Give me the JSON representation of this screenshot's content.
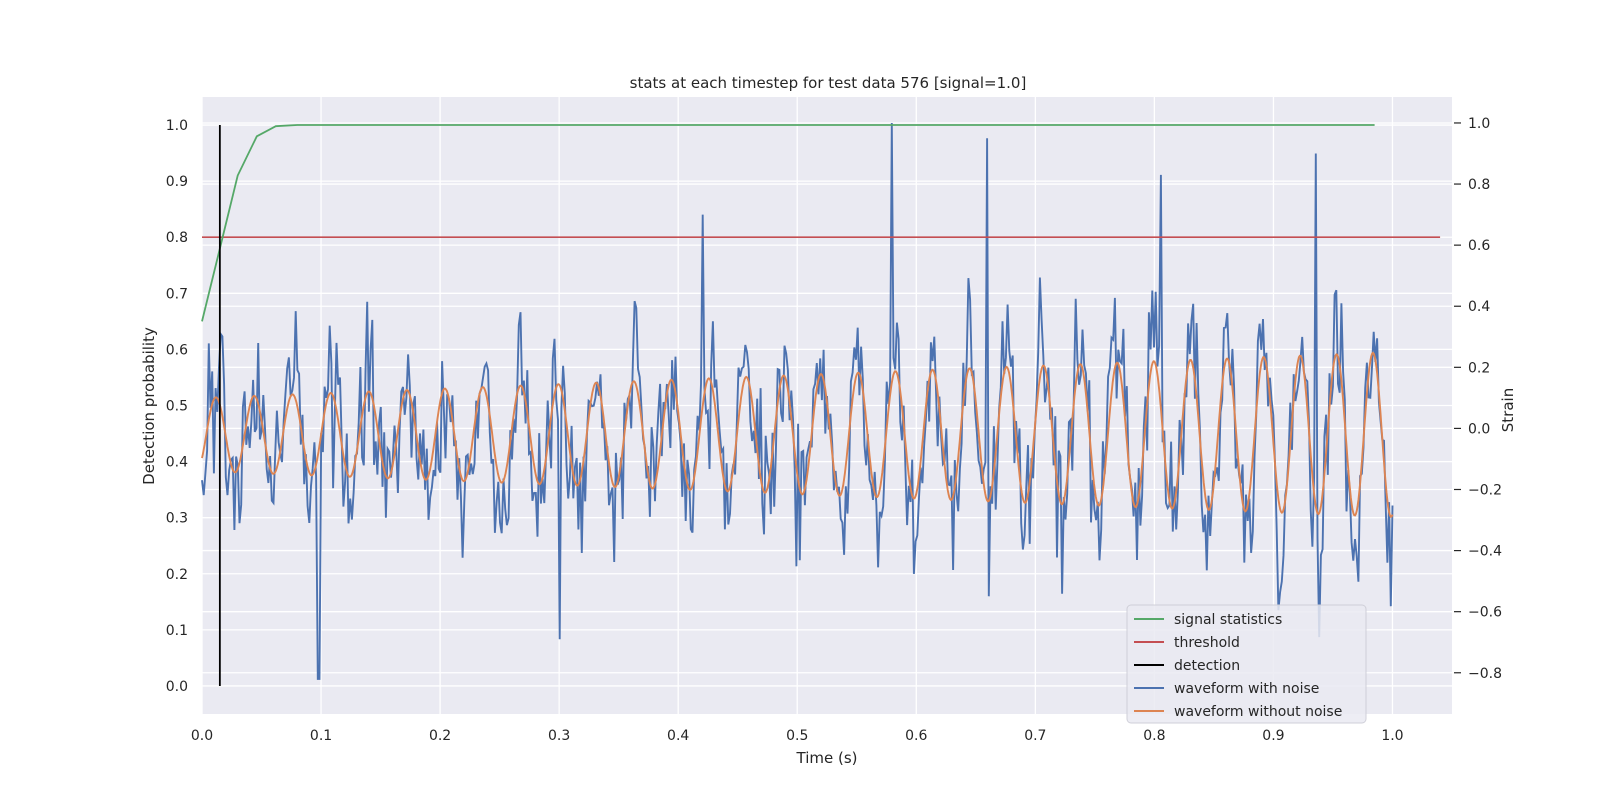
{
  "chart_data": {
    "type": "line",
    "title": "stats at each timestep for test data 576 [signal=1.0]",
    "xlabel": "Time (s)",
    "ylabel": "Detection probability",
    "y2label": "Strain",
    "xlim": [
      0.0,
      1.05
    ],
    "ylim": [
      -0.05,
      1.05
    ],
    "y2lim": [
      -0.935,
      1.085
    ],
    "xticks": [
      0.0,
      0.1,
      0.2,
      0.3,
      0.4,
      0.5,
      0.6,
      0.7,
      0.8,
      0.9,
      1.0
    ],
    "yticks": [
      0.0,
      0.1,
      0.2,
      0.3,
      0.4,
      0.5,
      0.6,
      0.7,
      0.8,
      0.9,
      1.0
    ],
    "y2ticks": [
      -0.8,
      -0.6,
      -0.4,
      -0.2,
      0.0,
      0.2,
      0.4,
      0.6,
      0.8,
      1.0
    ],
    "grid": true,
    "legend_position": "bottom-right",
    "colors": {
      "signal": "#55a868",
      "threshold": "#c44e52",
      "detection": "#000000",
      "noisy": "#4c72b0",
      "clean": "#dd8452",
      "background": "#eaeaf2",
      "grid": "#ffffff"
    },
    "legend": [
      "signal statistics",
      "threshold",
      "detection",
      "waveform with noise",
      "waveform without noise"
    ],
    "signal_statistics": {
      "x": [
        0.0,
        0.015,
        0.03,
        0.046,
        0.062,
        0.08,
        0.2,
        0.4,
        0.6,
        0.8,
        0.985
      ],
      "y": [
        0.65,
        0.78,
        0.91,
        0.98,
        0.998,
        1.0,
        1.0,
        1.0,
        1.0,
        1.0,
        1.0
      ]
    },
    "threshold": {
      "value": 0.8,
      "x": [
        0.0,
        1.04
      ]
    },
    "detection": {
      "x": 0.015,
      "y": [
        0.0,
        1.0
      ]
    },
    "waveform_with_noise": {
      "t_start": 0.0,
      "t_end": 1.0,
      "samples": 700,
      "peaks": [
        {
          "x": 0.098,
          "y": -0.82
        },
        {
          "x": 0.3,
          "y": -0.69
        },
        {
          "x": 0.42,
          "y": 0.7
        },
        {
          "x": 0.58,
          "y": 1.0
        },
        {
          "x": 0.66,
          "y": 0.95
        },
        {
          "x": 0.805,
          "y": 0.83
        },
        {
          "x": 0.935,
          "y": 0.9
        }
      ]
    },
    "waveform_without_noise": {
      "t_start": 0.0,
      "t_end": 1.0,
      "cycles": 31,
      "amplitude_start": 0.12,
      "amplitude_end": 0.27
    }
  }
}
